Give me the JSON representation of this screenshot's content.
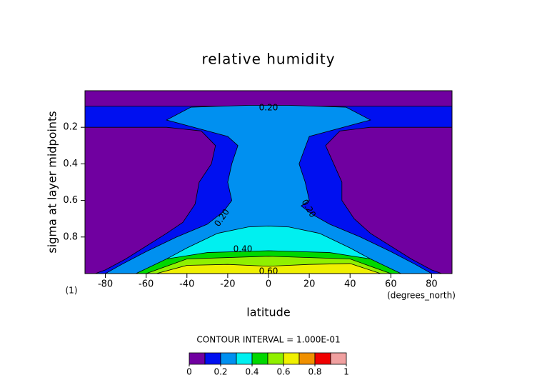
{
  "chart_data": {
    "type": "contour",
    "title": "relative humidity",
    "xlabel": "latitude",
    "ylabel": "sigma at layer midpoints",
    "xunits": "(degrees_north)",
    "yunits": "(1)",
    "xlim": [
      -90,
      90
    ],
    "ylim": [
      1.0,
      0.0
    ],
    "xticks": [
      -80,
      -60,
      -40,
      -20,
      0,
      20,
      40,
      60,
      80
    ],
    "yticks": [
      0.2,
      0.4,
      0.6,
      0.8
    ],
    "background_color": "#7000a0",
    "levels": [
      0,
      0.1,
      0.2,
      0.3,
      0.4,
      0.5,
      0.6,
      0.7,
      0.8,
      0.9,
      1
    ],
    "colors": [
      "#7000a0",
      "#0010f0",
      "#0090f0",
      "#00f0f0",
      "#00d800",
      "#90f000",
      "#f0f000",
      "#f09000",
      "#f00000",
      "#f0a0a0"
    ],
    "colorbar_ticks": [
      0,
      0.2,
      0.4,
      0.6,
      0.8,
      1
    ],
    "contour_interval_text": "CONTOUR INTERVAL = 1.000E-01",
    "contours": [
      {
        "level": 0.1,
        "lat": [
          -90,
          90,
          90,
          50,
          35,
          28,
          32,
          36,
          36,
          42,
          50,
          60,
          70,
          80,
          85,
          -85,
          -80,
          -70,
          -60,
          -50,
          -42,
          -36,
          -34,
          -28,
          -26,
          -33,
          -50,
          -90
        ],
        "sigma": [
          0.085,
          0.085,
          0.2,
          0.2,
          0.22,
          0.3,
          0.4,
          0.5,
          0.6,
          0.7,
          0.78,
          0.85,
          0.92,
          0.98,
          1.0,
          1.0,
          0.98,
          0.92,
          0.85,
          0.78,
          0.72,
          0.62,
          0.5,
          0.4,
          0.3,
          0.22,
          0.2,
          0.2
        ]
      },
      {
        "level": 0.2,
        "lat": [
          -38,
          -10,
          10,
          38,
          50,
          40,
          20,
          15,
          18,
          20,
          16,
          22,
          30,
          45,
          60,
          72,
          80,
          -80,
          -72,
          -60,
          -45,
          -30,
          -22,
          -18,
          -20,
          -18,
          -15,
          -20,
          -40,
          -50
        ],
        "sigma": [
          0.09,
          0.08,
          0.08,
          0.09,
          0.16,
          0.19,
          0.25,
          0.4,
          0.5,
          0.6,
          0.63,
          0.68,
          0.73,
          0.8,
          0.88,
          0.95,
          1.0,
          1.0,
          0.95,
          0.88,
          0.8,
          0.73,
          0.66,
          0.6,
          0.5,
          0.4,
          0.3,
          0.25,
          0.19,
          0.16
        ]
      },
      {
        "level": 0.3,
        "lat": [
          -40,
          -25,
          -10,
          0,
          10,
          25,
          40,
          55,
          65,
          -65,
          -55
        ],
        "sigma": [
          0.86,
          0.78,
          0.745,
          0.74,
          0.745,
          0.78,
          0.86,
          0.95,
          1.0,
          1.0,
          0.95
        ]
      },
      {
        "level": 0.4,
        "lat": [
          -65,
          -50,
          -30,
          0,
          30,
          50,
          65
        ],
        "sigma": [
          1.0,
          0.92,
          0.885,
          0.875,
          0.885,
          0.92,
          1.0
        ]
      },
      {
        "level": 0.5,
        "lat": [
          -60,
          -40,
          0,
          40,
          60
        ],
        "sigma": [
          1.0,
          0.92,
          0.905,
          0.92,
          1.0
        ]
      },
      {
        "level": 0.6,
        "lat": [
          -55,
          -40,
          -20,
          0,
          20,
          40,
          55
        ],
        "sigma": [
          1.0,
          0.955,
          0.95,
          0.96,
          0.95,
          0.945,
          1.0
        ]
      }
    ],
    "contour_labels": [
      {
        "value": 0.2,
        "label": "0.20"
      },
      {
        "value": 0.2,
        "label": "0.20"
      },
      {
        "value": 0.2,
        "label": "0.20"
      },
      {
        "value": 0.4,
        "label": "0.40"
      },
      {
        "value": 0.6,
        "label": "0.60"
      }
    ]
  }
}
